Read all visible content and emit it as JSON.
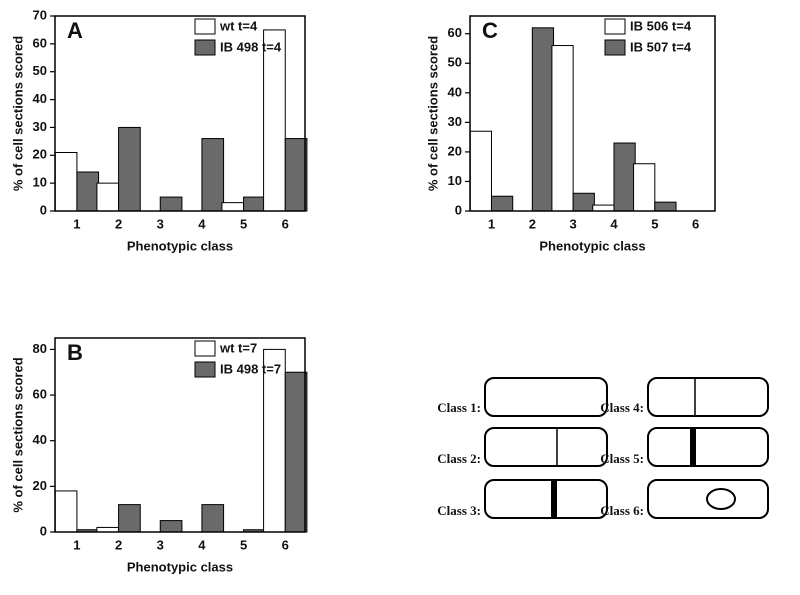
{
  "chart_data": [
    {
      "type": "bar",
      "panel_label": "A",
      "xlabel": "Phenotypic class",
      "ylabel": "% of cell sections scored",
      "categories": [
        "1",
        "2",
        "3",
        "4",
        "5",
        "6"
      ],
      "series": [
        {
          "name": "wt t=4",
          "color": "#ffffff",
          "values": [
            21,
            10,
            0,
            0,
            3,
            65
          ]
        },
        {
          "name": "IB 498 t=4",
          "color": "#6a6a6a",
          "values": [
            14,
            30,
            5,
            26,
            5,
            26
          ]
        }
      ],
      "ylim": [
        0,
        70
      ],
      "yticks": [
        0,
        10,
        20,
        30,
        40,
        50,
        60,
        70
      ],
      "legend": "upper right"
    },
    {
      "type": "bar",
      "panel_label": "B",
      "xlabel": "Phenotypic class",
      "ylabel": "% of cell sections scored",
      "categories": [
        "1",
        "2",
        "3",
        "4",
        "5",
        "6"
      ],
      "series": [
        {
          "name": "wt t=7",
          "color": "#ffffff",
          "values": [
            18,
            2,
            0,
            0,
            0,
            80
          ]
        },
        {
          "name": "IB 498 t=7",
          "color": "#6a6a6a",
          "values": [
            1,
            12,
            5,
            12,
            1,
            70
          ]
        }
      ],
      "ylim": [
        0,
        85
      ],
      "yticks": [
        0,
        20,
        40,
        60,
        80
      ],
      "legend": "upper right"
    },
    {
      "type": "bar",
      "panel_label": "C",
      "xlabel": "Phenotypic class",
      "ylabel": "% of cell sections scored",
      "categories": [
        "1",
        "2",
        "3",
        "4",
        "5",
        "6"
      ],
      "series": [
        {
          "name": "IB 506 t=4",
          "color": "#ffffff",
          "values": [
            27,
            0,
            56,
            2,
            16,
            0
          ]
        },
        {
          "name": "IB 507 t=4",
          "color": "#6a6a6a",
          "values": [
            5,
            62,
            6,
            23,
            3,
            0
          ]
        }
      ],
      "ylim": [
        0,
        66
      ],
      "yticks": [
        0,
        10,
        20,
        30,
        40,
        50,
        60
      ],
      "legend": "upper right"
    }
  ],
  "class_diagram": {
    "labels": [
      "Class 1:",
      "Class 2:",
      "Class 3:",
      "Class 4:",
      "Class 5:",
      "Class 6:"
    ]
  }
}
